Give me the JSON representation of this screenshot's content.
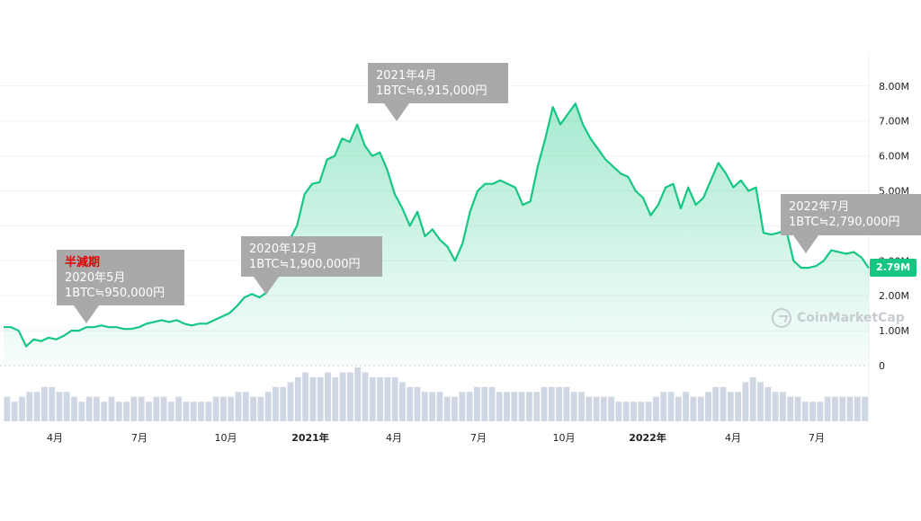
{
  "chart_data": {
    "type": "area",
    "title": "",
    "xlabel": "",
    "ylabel": "",
    "ylim": [
      0,
      8.6
    ],
    "y_ticks": [
      "0",
      "1.00M",
      "2.00M",
      "3.00M",
      "4.00M",
      "5.00M",
      "6.00M",
      "7.00M",
      "8.00M"
    ],
    "x_ticks": [
      "4月",
      "7月",
      "10月",
      "2021年",
      "4月",
      "7月",
      "10月",
      "2022年",
      "4月",
      "7月"
    ],
    "x_ticks_bold": [
      false,
      false,
      false,
      true,
      false,
      false,
      false,
      true,
      false,
      false
    ],
    "grid": true,
    "current_price_label": "2.79M",
    "series": [
      {
        "values": [
          1.1,
          1.1,
          1.0,
          0.55,
          0.75,
          0.7,
          0.8,
          0.75,
          0.85,
          1.0,
          1.0,
          1.1,
          1.1,
          1.15,
          1.1,
          1.1,
          1.05,
          1.05,
          1.1,
          1.2,
          1.25,
          1.3,
          1.25,
          1.3,
          1.2,
          1.15,
          1.2,
          1.2,
          1.3,
          1.4,
          1.5,
          1.7,
          1.95,
          2.05,
          1.95,
          2.1,
          2.6,
          3.1,
          3.6,
          4.0,
          4.9,
          5.2,
          5.25,
          5.9,
          6.0,
          6.5,
          6.4,
          6.9,
          6.3,
          6.0,
          6.1,
          5.6,
          4.9,
          4.5,
          4.0,
          4.4,
          3.7,
          3.9,
          3.6,
          3.4,
          3.0,
          3.5,
          4.4,
          5.0,
          5.2,
          5.2,
          5.3,
          5.2,
          5.1,
          4.6,
          4.7,
          5.7,
          6.5,
          7.4,
          6.9,
          7.2,
          7.5,
          6.9,
          6.5,
          6.2,
          5.9,
          5.7,
          5.5,
          5.4,
          5.0,
          4.8,
          4.3,
          4.6,
          5.1,
          5.2,
          4.5,
          5.1,
          4.6,
          4.8,
          5.3,
          5.8,
          5.5,
          5.1,
          5.3,
          5.0,
          5.1,
          3.8,
          3.75,
          3.8,
          3.9,
          3.0,
          2.8,
          2.8,
          2.85,
          3.0,
          3.3,
          3.25,
          3.2,
          3.25,
          3.1,
          2.79
        ]
      }
    ],
    "volume": [
      5.0,
      4.0,
      5.0,
      6.0,
      6.0,
      7.0,
      7.0,
      6.0,
      6.0,
      5.0,
      4.0,
      5.0,
      5.0,
      4.0,
      5.0,
      4.0,
      4.0,
      5.0,
      5.0,
      4.0,
      5.0,
      5.0,
      4.0,
      5.0,
      4.0,
      4.0,
      4.0,
      4.0,
      5.0,
      5.0,
      5.0,
      6.0,
      6.0,
      5.0,
      5.0,
      6.0,
      7.0,
      7.0,
      8.0,
      9.0,
      10.0,
      9.0,
      9.0,
      10.0,
      9.0,
      10.0,
      10.0,
      11.0,
      10.0,
      9.0,
      9.0,
      9.0,
      9.0,
      8.0,
      7.0,
      7.0,
      6.0,
      6.0,
      6.0,
      5.0,
      5.0,
      6.0,
      6.0,
      7.0,
      7.0,
      7.0,
      6.0,
      6.0,
      6.0,
      6.0,
      6.0,
      6.0,
      7.0,
      7.0,
      7.0,
      7.0,
      6.0,
      6.0,
      5.0,
      5.0,
      5.0,
      5.0,
      4.0,
      4.0,
      4.0,
      4.0,
      4.0,
      5.0,
      6.0,
      6.0,
      5.0,
      6.0,
      5.0,
      5.0,
      6.0,
      7.0,
      7.0,
      6.0,
      6.0,
      8.0,
      9.0,
      8.0,
      7.0,
      6.0,
      6.0,
      5.0,
      5.0,
      4.0,
      4.0,
      4.0,
      5.0,
      5.0,
      5.0,
      5.0,
      5.0,
      5.0
    ],
    "annotations": [
      {
        "lines": [
          "半減期",
          "2020年5月",
          "1BTC≒950,000円"
        ],
        "highlight_first": true
      },
      {
        "lines": [
          "2020年12月",
          "1BTC≒1,900,000円"
        ],
        "highlight_first": false
      },
      {
        "lines": [
          "2021年4月",
          "1BTC≒6,915,000円"
        ],
        "highlight_first": false
      },
      {
        "lines": [
          "2022年7月",
          "1BTC≒2,790,000円"
        ],
        "highlight_first": false
      }
    ]
  },
  "colors": {
    "line": "#16c784",
    "area_top": "#16c784",
    "grid": "#eff2f5",
    "axis_text": "#58667e",
    "volume": "#cfd6e4",
    "callout": "#a9a9a9",
    "highlight": "#e00000"
  },
  "watermark_text": "CoinMarketCap"
}
